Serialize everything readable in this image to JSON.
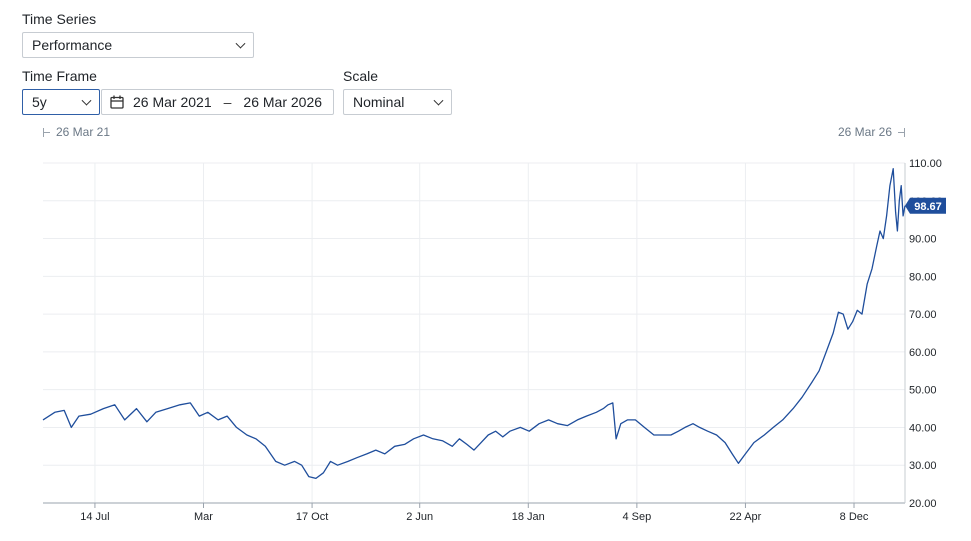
{
  "time_series": {
    "label": "Time Series",
    "value": "Performance"
  },
  "time_frame": {
    "label": "Time Frame",
    "value": "5y",
    "start_date": "26 Mar 2021",
    "separator": "–",
    "end_date": "26 Mar 2026"
  },
  "scale": {
    "label": "Scale",
    "value": "Nominal"
  },
  "range": {
    "start": "26 Mar 21",
    "end": "26 Mar 26"
  },
  "colors": {
    "line": "#1f4e9c",
    "badge": "#1f4e9c",
    "focus": "#2f5fa7"
  },
  "icons": {
    "calendar": "calendar-icon",
    "dropdown": "chevron-down-icon"
  },
  "chart_data": {
    "type": "line",
    "title": "",
    "xlabel": "",
    "ylabel": "",
    "ylim": [
      20,
      110
    ],
    "yticks": [
      "110.00",
      "100.00",
      "90.00",
      "80.00",
      "70.00",
      "60.00",
      "50.00",
      "40.00",
      "30.00",
      "20.00"
    ],
    "ytick_values": [
      110,
      100,
      90,
      80,
      70,
      60,
      50,
      40,
      30,
      20
    ],
    "xlim": [
      "2021-03-26",
      "2026-03-26"
    ],
    "xticks": [
      {
        "label": "14 Jul",
        "date": "2021-07-14"
      },
      {
        "label": "Mar",
        "date": "2022-03-01"
      },
      {
        "label": "17 Oct",
        "date": "2022-10-17"
      },
      {
        "label": "2 Jun",
        "date": "2023-06-02"
      },
      {
        "label": "18 Jan",
        "date": "2024-01-18"
      },
      {
        "label": "4 Sep",
        "date": "2024-09-04"
      },
      {
        "label": "22 Apr",
        "date": "2025-04-22"
      },
      {
        "label": "8 Dec",
        "date": "2025-12-08"
      }
    ],
    "last_value_label": "98.67",
    "last_value": 98.67,
    "grid": true,
    "series": [
      {
        "points": [
          [
            "2021-03-26",
            42
          ],
          [
            "2021-04-20",
            44
          ],
          [
            "2021-05-10",
            44.5
          ],
          [
            "2021-05-25",
            40
          ],
          [
            "2021-06-10",
            43
          ],
          [
            "2021-07-05",
            43.5
          ],
          [
            "2021-08-01",
            45
          ],
          [
            "2021-08-25",
            46
          ],
          [
            "2021-09-15",
            42
          ],
          [
            "2021-10-10",
            45
          ],
          [
            "2021-11-01",
            41.5
          ],
          [
            "2021-11-20",
            44
          ],
          [
            "2021-12-15",
            45
          ],
          [
            "2022-01-10",
            46
          ],
          [
            "2022-02-01",
            46.5
          ],
          [
            "2022-02-20",
            43
          ],
          [
            "2022-03-10",
            44
          ],
          [
            "2022-04-01",
            42
          ],
          [
            "2022-04-20",
            43
          ],
          [
            "2022-05-10",
            40
          ],
          [
            "2022-06-01",
            38
          ],
          [
            "2022-06-20",
            37
          ],
          [
            "2022-07-10",
            35
          ],
          [
            "2022-08-01",
            31
          ],
          [
            "2022-08-20",
            30
          ],
          [
            "2022-09-10",
            31
          ],
          [
            "2022-09-25",
            30
          ],
          [
            "2022-10-10",
            27
          ],
          [
            "2022-10-25",
            26.5
          ],
          [
            "2022-11-10",
            28
          ],
          [
            "2022-11-25",
            31
          ],
          [
            "2022-12-10",
            30
          ],
          [
            "2023-01-01",
            31
          ],
          [
            "2023-01-20",
            32
          ],
          [
            "2023-02-10",
            33
          ],
          [
            "2023-03-01",
            34
          ],
          [
            "2023-03-20",
            33
          ],
          [
            "2023-04-10",
            35
          ],
          [
            "2023-05-01",
            35.5
          ],
          [
            "2023-05-20",
            37
          ],
          [
            "2023-06-10",
            38
          ],
          [
            "2023-06-30",
            37
          ],
          [
            "2023-07-20",
            36.5
          ],
          [
            "2023-08-10",
            35
          ],
          [
            "2023-08-25",
            37
          ],
          [
            "2023-09-10",
            35.5
          ],
          [
            "2023-09-25",
            34
          ],
          [
            "2023-10-10",
            36
          ],
          [
            "2023-10-25",
            38
          ],
          [
            "2023-11-10",
            39
          ],
          [
            "2023-11-25",
            37.5
          ],
          [
            "2023-12-10",
            39
          ],
          [
            "2024-01-01",
            40
          ],
          [
            "2024-01-20",
            39
          ],
          [
            "2024-02-10",
            41
          ],
          [
            "2024-03-01",
            42
          ],
          [
            "2024-03-20",
            41
          ],
          [
            "2024-04-10",
            40.5
          ],
          [
            "2024-05-01",
            42
          ],
          [
            "2024-05-20",
            43
          ],
          [
            "2024-06-10",
            44
          ],
          [
            "2024-06-25",
            45
          ],
          [
            "2024-07-05",
            46
          ],
          [
            "2024-07-15",
            46.5
          ],
          [
            "2024-07-22",
            37
          ],
          [
            "2024-08-01",
            41
          ],
          [
            "2024-08-15",
            42
          ],
          [
            "2024-09-01",
            42
          ],
          [
            "2024-09-20",
            40
          ],
          [
            "2024-10-10",
            38
          ],
          [
            "2024-10-30",
            38
          ],
          [
            "2024-11-15",
            38
          ],
          [
            "2024-12-01",
            39
          ],
          [
            "2024-12-15",
            40
          ],
          [
            "2025-01-01",
            41
          ],
          [
            "2025-01-15",
            40
          ],
          [
            "2025-02-01",
            39
          ],
          [
            "2025-02-20",
            38
          ],
          [
            "2025-03-10",
            36
          ],
          [
            "2025-03-25",
            33
          ],
          [
            "2025-04-07",
            30.5
          ],
          [
            "2025-04-22",
            33
          ],
          [
            "2025-05-10",
            36
          ],
          [
            "2025-06-01",
            38
          ],
          [
            "2025-06-20",
            40
          ],
          [
            "2025-07-10",
            42
          ],
          [
            "2025-08-01",
            45
          ],
          [
            "2025-08-20",
            48
          ],
          [
            "2025-09-10",
            52
          ],
          [
            "2025-09-25",
            55
          ],
          [
            "2025-10-10",
            60
          ],
          [
            "2025-10-25",
            65
          ],
          [
            "2025-11-05",
            70.5
          ],
          [
            "2025-11-15",
            70
          ],
          [
            "2025-11-25",
            66
          ],
          [
            "2025-12-05",
            68
          ],
          [
            "2025-12-15",
            71
          ],
          [
            "2025-12-25",
            70
          ],
          [
            "2026-01-05",
            78
          ],
          [
            "2026-01-15",
            82
          ],
          [
            "2026-01-25",
            88
          ],
          [
            "2026-02-01",
            92
          ],
          [
            "2026-02-08",
            90
          ],
          [
            "2026-02-15",
            96
          ],
          [
            "2026-02-22",
            104
          ],
          [
            "2026-03-01",
            108.5
          ],
          [
            "2026-03-06",
            97
          ],
          [
            "2026-03-10",
            92
          ],
          [
            "2026-03-14",
            100
          ],
          [
            "2026-03-18",
            104
          ],
          [
            "2026-03-22",
            96
          ],
          [
            "2026-03-26",
            98.67
          ]
        ]
      }
    ]
  }
}
